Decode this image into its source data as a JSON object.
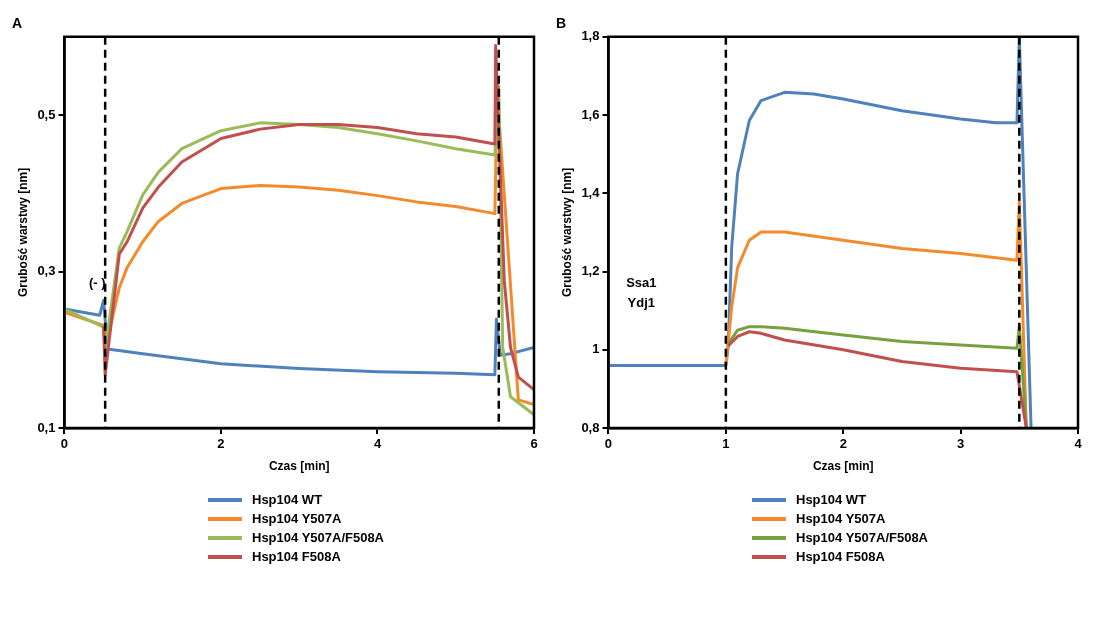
{
  "chart_data": [
    {
      "type": "line",
      "title": "A",
      "xlabel": "Czas [min]",
      "ylabel": "Grubość warstwy [nm]",
      "xlim": [
        0,
        6
      ],
      "xticks": [
        0,
        2,
        4,
        6
      ],
      "ylim": [
        0.1,
        0.6
      ],
      "yticks": [
        {
          "value": 0.1,
          "label": "0,1"
        },
        {
          "value": 0.3,
          "label": "0,3"
        },
        {
          "value": 0.5,
          "label": "0,5"
        }
      ],
      "grid": false,
      "legend": "bottom",
      "line_style": "solid",
      "ref_lines": [
        {
          "axis": "x",
          "value": 0.52,
          "color": "#000000",
          "line_style": "dashed"
        },
        {
          "axis": "x",
          "value": 5.55,
          "color": "#000000",
          "line_style": "dashed"
        }
      ],
      "annotations": [
        "(- )"
      ],
      "series": [
        {
          "name": "Hsp104 WT",
          "color": "#4f81bd",
          "x": [
            0,
            0.45,
            0.5,
            0.55,
            1,
            2,
            3,
            4,
            5,
            5.5,
            5.52,
            5.57,
            5.7,
            6
          ],
          "values": [
            0.252,
            0.244,
            0.263,
            0.201,
            0.195,
            0.182,
            0.176,
            0.172,
            0.17,
            0.168,
            0.239,
            0.193,
            0.195,
            0.203
          ]
        },
        {
          "name": "Hsp104 Y507A",
          "color": "#f38b2c",
          "x": [
            0,
            0.5,
            0.52,
            0.7,
            0.8,
            1,
            1.2,
            1.5,
            2,
            2.5,
            3,
            3.5,
            4,
            4.5,
            5,
            5.5,
            5.53,
            5.8,
            6
          ],
          "values": [
            0.248,
            0.231,
            0.2,
            0.279,
            0.305,
            0.338,
            0.364,
            0.387,
            0.406,
            0.41,
            0.408,
            0.404,
            0.397,
            0.389,
            0.383,
            0.374,
            0.53,
            0.136,
            0.13
          ]
        },
        {
          "name": "Hsp104 Y507A/F508A",
          "color": "#9bbb59",
          "x": [
            0,
            0.5,
            0.52,
            0.7,
            0.8,
            1,
            1.2,
            1.5,
            2,
            2.5,
            3,
            3.5,
            4,
            4.5,
            5,
            5.5,
            5.55,
            5.6,
            5.7,
            6
          ],
          "values": [
            0.252,
            0.229,
            0.2,
            0.33,
            0.351,
            0.398,
            0.427,
            0.457,
            0.48,
            0.49,
            0.488,
            0.484,
            0.476,
            0.467,
            0.457,
            0.449,
            0.537,
            0.203,
            0.14,
            0.117
          ]
        },
        {
          "name": "Hsp104 F508A",
          "color": "#c0504d",
          "x": [
            0.5,
            0.52,
            0.7,
            0.8,
            1,
            1.2,
            1.5,
            2,
            2.5,
            3,
            3.5,
            4,
            4.5,
            5,
            5.5,
            5.51,
            5.62,
            5.7,
            5.8,
            6
          ],
          "values": [
            0.23,
            0.168,
            0.322,
            0.338,
            0.381,
            0.408,
            0.44,
            0.47,
            0.482,
            0.488,
            0.488,
            0.484,
            0.476,
            0.472,
            0.463,
            0.589,
            0.288,
            0.203,
            0.165,
            0.149
          ]
        }
      ]
    },
    {
      "type": "line",
      "title": "B",
      "xlabel": "Czas [min]",
      "ylabel": "Grubość warstwy [nm]",
      "xlim": [
        0,
        4
      ],
      "xticks": [
        0,
        1,
        2,
        3,
        4
      ],
      "ylim": [
        0.8,
        1.8
      ],
      "yticks": [
        {
          "value": 0.8,
          "label": "0,8"
        },
        1,
        {
          "value": 1.2,
          "label": "1,2"
        },
        {
          "value": 1.4,
          "label": "1,4"
        },
        {
          "value": 1.6,
          "label": "1,6"
        },
        {
          "value": 1.8,
          "label": "1,8"
        }
      ],
      "grid": false,
      "legend": "bottom",
      "line_style": "solid",
      "ref_lines": [
        {
          "axis": "x",
          "value": 1,
          "color": "#000000",
          "line_style": "dashed"
        },
        {
          "axis": "x",
          "value": 3.5,
          "color": "#000000",
          "line_style": "dashed"
        }
      ],
      "annotations": [
        "Ssa1",
        "Ydj1"
      ],
      "series": [
        {
          "name": "Hsp104 WT",
          "color": "#4f81bd",
          "x": [
            0,
            0.5,
            1,
            1.02,
            1.05,
            1.1,
            1.2,
            1.3,
            1.5,
            1.75,
            2,
            2.5,
            3,
            3.3,
            3.48,
            3.5,
            3.6
          ],
          "values": [
            0.96,
            0.96,
            0.96,
            1.008,
            1.263,
            1.45,
            1.586,
            1.637,
            1.658,
            1.654,
            1.641,
            1.611,
            1.59,
            1.58,
            1.58,
            1.8,
            0.8
          ]
        },
        {
          "name": "Hsp104 Y507A",
          "color": "#f38b2c",
          "x": [
            1,
            1.05,
            1.1,
            1.2,
            1.3,
            1.5,
            2,
            2.5,
            3,
            3.48,
            3.5,
            3.56
          ],
          "values": [
            0.96,
            1.11,
            1.21,
            1.28,
            1.301,
            1.301,
            1.28,
            1.259,
            1.246,
            1.229,
            1.38,
            0.8
          ]
        },
        {
          "name": "Hsp104 Y507A/F508A",
          "color": "#77a040",
          "x": [
            1.02,
            1.1,
            1.2,
            1.3,
            1.5,
            2,
            2.5,
            3,
            3.48,
            3.5,
            3.56
          ],
          "values": [
            1.015,
            1.05,
            1.059,
            1.059,
            1.055,
            1.038,
            1.021,
            1.012,
            1.004,
            1.06,
            0.8
          ]
        },
        {
          "name": "Hsp104 F508A",
          "color": "#c0504d",
          "x": [
            1.02,
            1.1,
            1.2,
            1.3,
            1.5,
            2,
            2.5,
            3,
            3.48,
            3.56
          ],
          "values": [
            1.01,
            1.034,
            1.046,
            1.042,
            1.025,
            1.0,
            0.97,
            0.953,
            0.944,
            0.8
          ]
        }
      ]
    }
  ]
}
